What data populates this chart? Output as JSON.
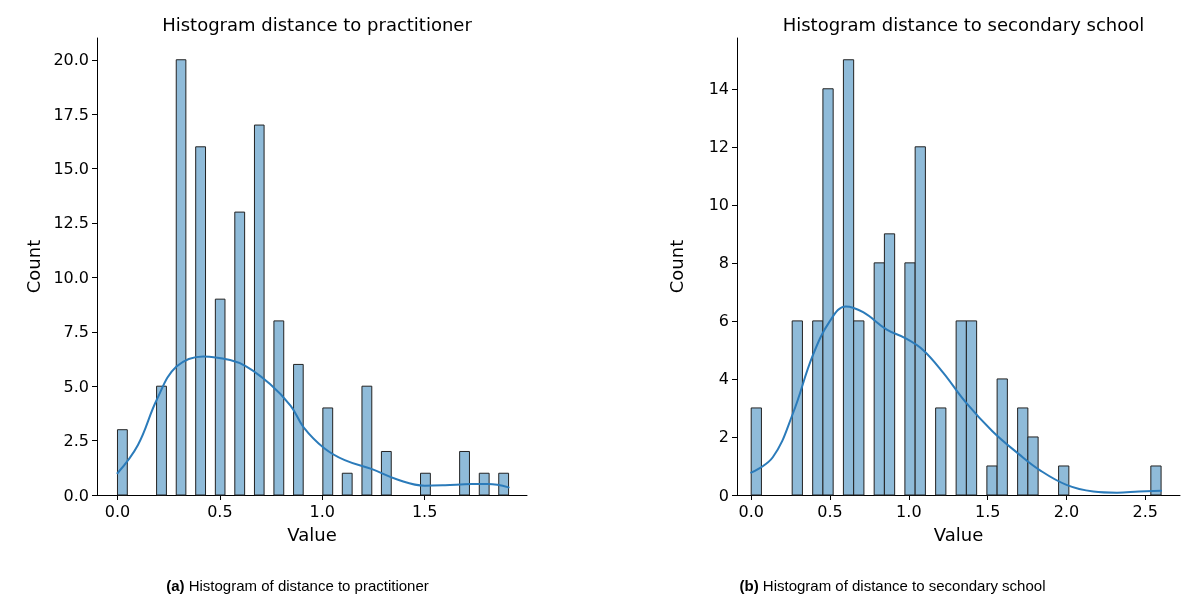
{
  "chart_data": [
    {
      "type": "histogram",
      "title": "Histogram distance to practitioner",
      "xlabel": "Value",
      "ylabel": "Count",
      "color": "#8fbbd9",
      "bins": [
        0,
        0.048,
        0.096,
        0.143,
        0.191,
        0.239,
        0.287,
        0.334,
        0.382,
        0.43,
        0.478,
        0.525,
        0.573,
        0.621,
        0.669,
        0.716,
        0.764,
        0.812,
        0.86,
        0.907,
        0.955,
        1.003,
        1.051,
        1.098,
        1.146,
        1.194,
        1.242,
        1.289,
        1.337,
        1.385,
        1.433,
        1.48,
        1.528,
        1.576,
        1.624,
        1.671,
        1.719,
        1.767,
        1.815,
        1.862,
        1.91
      ],
      "values": [
        3,
        0,
        0,
        0,
        5,
        0,
        20,
        0,
        16,
        0,
        9,
        0,
        13,
        0,
        17,
        0,
        8,
        0,
        6,
        0,
        0,
        4,
        0,
        1,
        0,
        5,
        0,
        2,
        0,
        0,
        0,
        1,
        0,
        0,
        0,
        2,
        0,
        1,
        0,
        1
      ],
      "series": [
        {
          "type": "line",
          "color": "#2b7bba",
          "x": [
            0,
            0.1,
            0.193,
            0.288,
            0.42,
            0.55,
            0.63,
            0.745,
            0.846,
            0.91,
            1.01,
            1.11,
            1.24,
            1.37,
            1.5,
            1.6,
            1.73,
            1.81,
            1.91
          ],
          "values": [
            1.0,
            2.3,
            4.4,
            5.9,
            6.37,
            6.2,
            5.9,
            5.1,
            4.1,
            3.1,
            2.15,
            1.6,
            1.2,
            0.7,
            0.43,
            0.45,
            0.5,
            0.5,
            0.35
          ]
        }
      ],
      "xlim": [
        -0.1,
        2.0
      ],
      "ylim": [
        0,
        21
      ],
      "xticks": [
        {
          "value": 0,
          "label": "0.0"
        },
        {
          "value": 0.5,
          "label": "0.5"
        },
        {
          "value": 1,
          "label": "1.0"
        },
        {
          "value": 1.5,
          "label": "1.5"
        }
      ],
      "yticks": [
        {
          "value": 0,
          "label": "0.0"
        },
        2.5,
        {
          "value": 5,
          "label": "5.0"
        },
        7.5,
        {
          "value": 10,
          "label": "10.0"
        },
        12.5,
        {
          "value": 15,
          "label": "15.0"
        },
        17.5,
        {
          "value": 20,
          "label": "20.0"
        }
      ],
      "grid": false,
      "annotations": [
        "(a) Histogram of distance to practitioner"
      ]
    },
    {
      "type": "histogram",
      "title": "Histogram distance to secondary school",
      "xlabel": "Value",
      "ylabel": "Count",
      "color": "#8fbbd9",
      "bins": [
        0,
        0.065,
        0.13,
        0.195,
        0.26,
        0.325,
        0.39,
        0.455,
        0.52,
        0.585,
        0.65,
        0.715,
        0.78,
        0.845,
        0.91,
        0.975,
        1.04,
        1.105,
        1.17,
        1.235,
        1.3,
        1.365,
        1.43,
        1.495,
        1.56,
        1.625,
        1.69,
        1.755,
        1.82,
        1.885,
        1.95,
        2.015,
        2.08,
        2.145,
        2.21,
        2.275,
        2.34,
        2.405,
        2.47,
        2.535,
        2.6
      ],
      "values": [
        3,
        0,
        0,
        0,
        6,
        0,
        6,
        14,
        0,
        15,
        6,
        0,
        8,
        9,
        0,
        8,
        12,
        0,
        3,
        0,
        6,
        6,
        0,
        1,
        4,
        0,
        3,
        2,
        0,
        0,
        1,
        0,
        0,
        0,
        0,
        0,
        0,
        0,
        0,
        1
      ],
      "series": [
        {
          "type": "line",
          "color": "#2b7bba",
          "x": [
            0,
            0.137,
            0.264,
            0.39,
            0.5,
            0.6,
            0.71,
            0.86,
            0.98,
            1.09,
            1.22,
            1.36,
            1.53,
            1.7,
            1.83,
            2.0,
            2.17,
            2.32,
            2.46,
            2.6
          ],
          "values": [
            0.77,
            1.3,
            2.8,
            4.8,
            6.0,
            6.5,
            6.3,
            5.7,
            5.4,
            5.0,
            4.2,
            3.2,
            2.2,
            1.4,
            0.86,
            0.35,
            0.12,
            0.08,
            0.12,
            0.15
          ]
        }
      ],
      "xlim": [
        -0.09,
        2.72
      ],
      "ylim": [
        0,
        15.75
      ],
      "xticks": [
        {
          "value": 0,
          "label": "0.0"
        },
        {
          "value": 0.5,
          "label": "0.5"
        },
        {
          "value": 1,
          "label": "1.0"
        },
        {
          "value": 1.5,
          "label": "1.5"
        },
        {
          "value": 2,
          "label": "2.0"
        },
        {
          "value": 2.5,
          "label": "2.5"
        }
      ],
      "yticks": [
        0,
        2,
        4,
        6,
        8,
        10,
        12,
        14
      ],
      "grid": false,
      "annotations": [
        "(b) Histogram of distance to secondary school"
      ]
    }
  ]
}
